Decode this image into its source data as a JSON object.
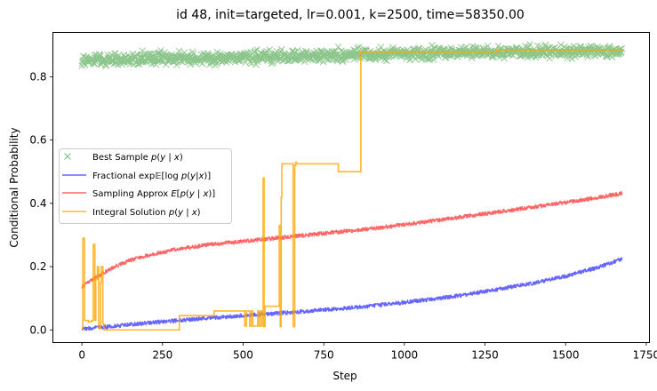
{
  "chart_data": {
    "type": "line",
    "title": "id 48, init=targeted, lr=0.001, k=2500, time=58350.00",
    "xlabel": "Step",
    "ylabel": "Conditional Probability",
    "xlim": [
      -90,
      1760
    ],
    "ylim": [
      -0.04,
      0.94
    ],
    "xticks": [
      0,
      250,
      500,
      750,
      1000,
      1250,
      1500,
      1750
    ],
    "xtick_labels": [
      "0",
      "250",
      "500",
      "750",
      "1000",
      "1250",
      "1500",
      "1750"
    ],
    "yticks": [
      0.0,
      0.2,
      0.4,
      0.6,
      0.8
    ],
    "ytick_labels": [
      "0.0",
      "0.2",
      "0.4",
      "0.6",
      "0.8"
    ],
    "grid": false,
    "legend_position": "center-left",
    "series": [
      {
        "name": "Best Sample p(y | x)",
        "legend_label": "Best Sample $p(y \\mid x)$",
        "kind": "scatter",
        "marker": "x",
        "color": "#008000",
        "x_range": [
          0,
          1675
        ],
        "trend": {
          "x": [
            0,
            200,
            500,
            800,
            900,
            1300,
            1675
          ],
          "y": [
            0.852,
            0.857,
            0.862,
            0.868,
            0.872,
            0.878,
            0.88
          ]
        },
        "spread": 0.016
      },
      {
        "name": "Fractional exp E[log p(y|x)]",
        "legend_label": "Fractional exp$\\mathbb{E}[\\log p(y|x)]$",
        "kind": "line",
        "color": "#0000ff",
        "x": [
          0,
          100,
          200,
          300,
          400,
          500,
          600,
          700,
          800,
          900,
          1000,
          1100,
          1200,
          1300,
          1400,
          1500,
          1600,
          1675
        ],
        "y": [
          0.003,
          0.012,
          0.022,
          0.03,
          0.038,
          0.045,
          0.052,
          0.059,
          0.067,
          0.076,
          0.087,
          0.099,
          0.113,
          0.13,
          0.148,
          0.17,
          0.197,
          0.224
        ],
        "noise": 0.006
      },
      {
        "name": "Sampling Approx E[p(y | x)]",
        "legend_label": "Sampling Approx $E[p(y \\mid x)]$",
        "kind": "line",
        "color": "#ff0000",
        "x": [
          0,
          20,
          50,
          100,
          150,
          200,
          300,
          400,
          500,
          600,
          700,
          800,
          900,
          1000,
          1100,
          1200,
          1300,
          1400,
          1500,
          1600,
          1675
        ],
        "y": [
          0.135,
          0.15,
          0.17,
          0.2,
          0.22,
          0.235,
          0.256,
          0.27,
          0.28,
          0.29,
          0.3,
          0.31,
          0.32,
          0.333,
          0.346,
          0.36,
          0.374,
          0.388,
          0.403,
          0.418,
          0.432
        ],
        "noise": 0.006
      },
      {
        "name": "Integral Solution p(y | x)",
        "legend_label": "Integral Solution $p(y \\mid x)$",
        "kind": "step",
        "color": "#ffa500",
        "x": [
          0,
          3,
          5,
          8,
          20,
          30,
          35,
          40,
          43,
          48,
          52,
          58,
          60,
          65,
          68,
          300,
          302,
          405,
          410,
          500,
          505,
          510,
          520,
          525,
          530,
          545,
          550,
          555,
          560,
          562,
          565,
          568,
          610,
          612,
          615,
          618,
          620,
          650,
          655,
          660,
          663,
          665,
          790,
          795,
          860,
          865,
          1280,
          1285,
          1675
        ],
        "y": [
          0.003,
          0.288,
          0.29,
          0.03,
          0.025,
          0.03,
          0.27,
          0.03,
          0.16,
          0.2,
          0.005,
          0.15,
          0.2,
          0.02,
          0.0,
          0.0,
          0.045,
          0.045,
          0.06,
          0.06,
          0.012,
          0.06,
          0.012,
          0.06,
          0.012,
          0.06,
          0.012,
          0.06,
          0.012,
          0.48,
          0.01,
          0.075,
          0.075,
          0.33,
          0.01,
          0.42,
          0.525,
          0.525,
          0.01,
          0.52,
          0.53,
          0.525,
          0.525,
          0.5,
          0.5,
          0.878,
          0.878,
          0.885,
          0.885
        ]
      }
    ]
  }
}
